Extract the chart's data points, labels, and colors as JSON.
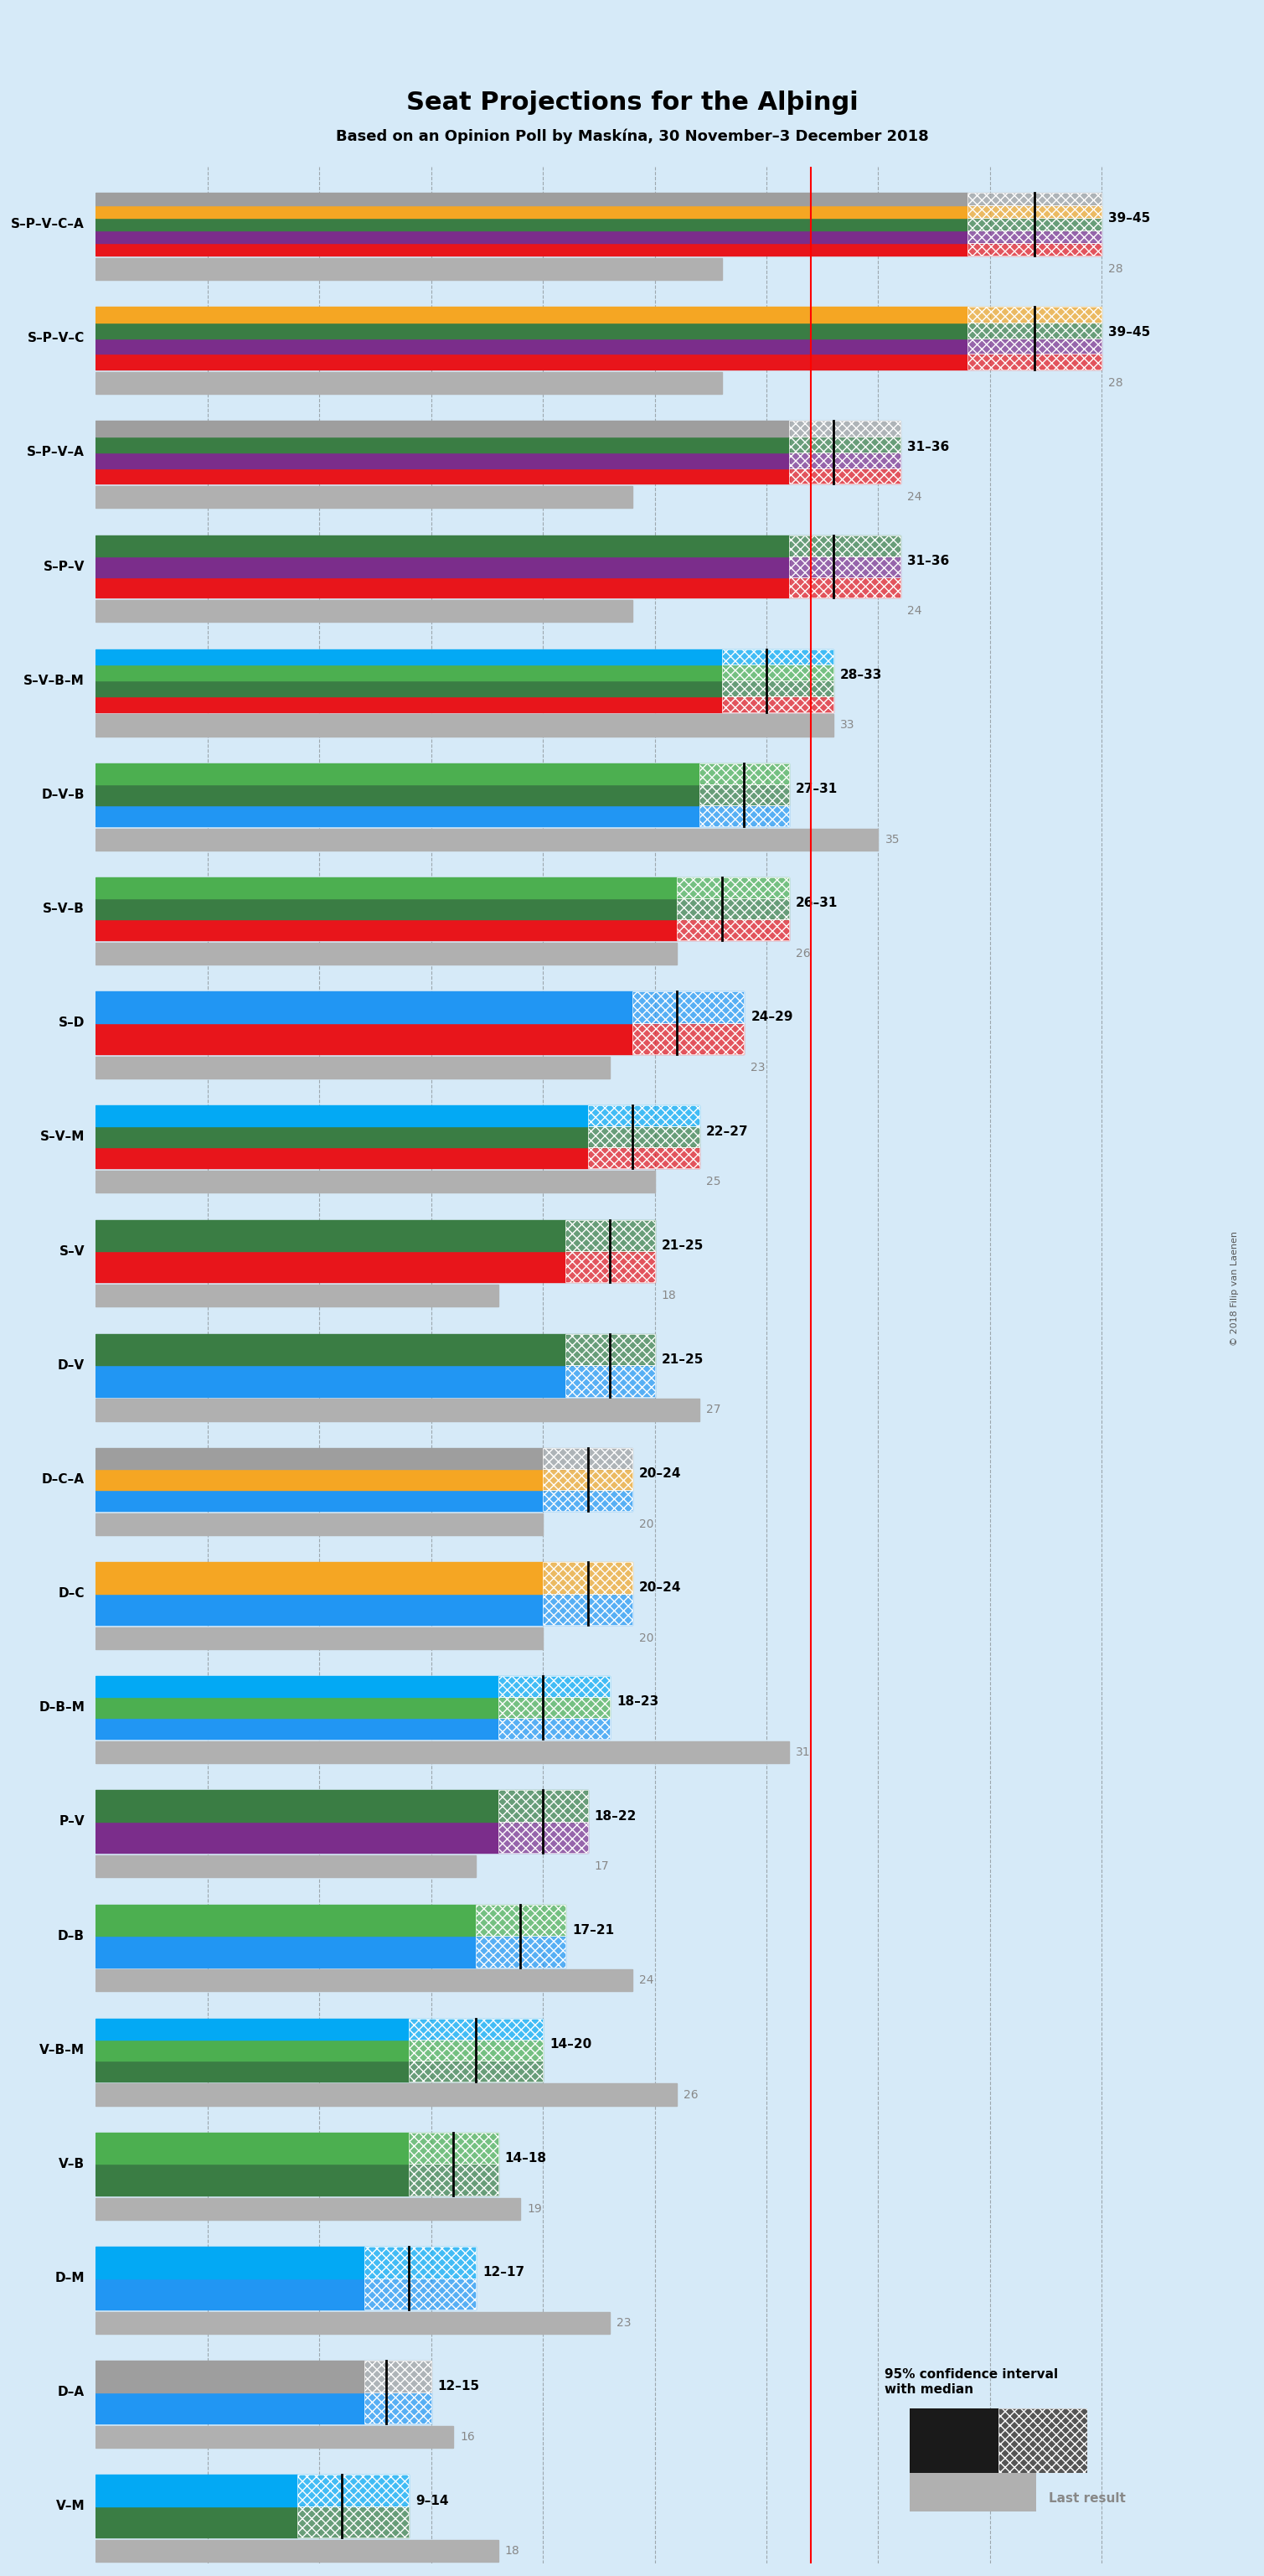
{
  "title": "Seat Projections for the Alþingi",
  "subtitle": "Based on an Opinion Poll by Maskína, 30 November–3 December 2018",
  "background_color": "#d6eaf8",
  "majority_line": 32,
  "xlim": [
    0,
    50
  ],
  "coalitions": [
    {
      "label": "S–P–V–C–A",
      "ci_low": 39,
      "ci_high": 45,
      "median": 42,
      "last": 28,
      "colors": [
        "#ff0000",
        "#6a0dad",
        "#4a7c59",
        "#ff8c00",
        "#c0c0c0"
      ]
    },
    {
      "label": "S–P–V–C",
      "ci_low": 39,
      "ci_high": 45,
      "median": 42,
      "last": 28,
      "colors": [
        "#ff0000",
        "#6a0dad",
        "#4a7c59",
        "#ff8c00"
      ]
    },
    {
      "label": "S–P–V–A",
      "ci_low": 31,
      "ci_high": 36,
      "median": 33,
      "last": 24,
      "colors": [
        "#ff0000",
        "#6a0dad",
        "#4a7c59",
        "#c0c0c0"
      ]
    },
    {
      "label": "S–P–V",
      "ci_low": 31,
      "ci_high": 36,
      "median": 33,
      "last": 24,
      "colors": [
        "#ff0000",
        "#6a0dad",
        "#4a7c59"
      ]
    },
    {
      "label": "S–V–B–M",
      "ci_low": 28,
      "ci_high": 33,
      "median": 30,
      "last": 33,
      "colors": [
        "#ff0000",
        "#4a7c59",
        "#00b050",
        "#2196F3"
      ]
    },
    {
      "label": "D–V–B",
      "ci_low": 27,
      "ci_high": 31,
      "median": 29,
      "last": 35,
      "colors": [
        "#1e90ff",
        "#4a7c59",
        "#00b050"
      ]
    },
    {
      "label": "S–V–B",
      "ci_low": 26,
      "ci_high": 31,
      "median": 28,
      "last": 26,
      "colors": [
        "#ff0000",
        "#4a7c59",
        "#00b050"
      ]
    },
    {
      "label": "S–D",
      "ci_low": 24,
      "ci_high": 29,
      "median": 26,
      "last": 23,
      "colors": [
        "#ff0000",
        "#1e90ff"
      ]
    },
    {
      "label": "S–V–M",
      "ci_low": 22,
      "ci_high": 27,
      "median": 24,
      "last": 25,
      "colors": [
        "#ff0000",
        "#4a7c59",
        "#2196F3"
      ]
    },
    {
      "label": "S–V",
      "ci_low": 21,
      "ci_high": 25,
      "median": 23,
      "last": 18,
      "colors": [
        "#ff0000",
        "#4a7c59"
      ]
    },
    {
      "label": "D–V",
      "ci_low": 21,
      "ci_high": 25,
      "median": 23,
      "last": 27,
      "colors": [
        "#1e90ff",
        "#4a7c59"
      ]
    },
    {
      "label": "D–C–A",
      "ci_low": 20,
      "ci_high": 24,
      "median": 22,
      "last": 20,
      "colors": [
        "#1e90ff",
        "#ff8c00",
        "#c0c0c0"
      ]
    },
    {
      "label": "D–C",
      "ci_low": 20,
      "ci_high": 24,
      "median": 22,
      "last": 20,
      "colors": [
        "#1e90ff",
        "#ff8c00"
      ]
    },
    {
      "label": "D–B–M",
      "ci_low": 18,
      "ci_high": 23,
      "median": 20,
      "last": 31,
      "colors": [
        "#1e90ff",
        "#00b050",
        "#2196F3"
      ]
    },
    {
      "label": "P–V",
      "ci_low": 18,
      "ci_high": 22,
      "median": 20,
      "last": 17,
      "colors": [
        "#6a0dad",
        "#4a7c59"
      ]
    },
    {
      "label": "D–B",
      "ci_low": 17,
      "ci_high": 21,
      "median": 19,
      "last": 24,
      "colors": [
        "#1e90ff",
        "#00b050"
      ]
    },
    {
      "label": "V–B–M",
      "ci_low": 14,
      "ci_high": 20,
      "median": 17,
      "last": 26,
      "colors": [
        "#4a7c59",
        "#00b050",
        "#2196F3"
      ]
    },
    {
      "label": "V–B",
      "ci_low": 14,
      "ci_high": 18,
      "median": 16,
      "last": 19,
      "colors": [
        "#4a7c59",
        "#00b050"
      ]
    },
    {
      "label": "D–M",
      "ci_low": 12,
      "ci_high": 17,
      "median": 14,
      "last": 23,
      "colors": [
        "#1e90ff",
        "#2196F3"
      ]
    },
    {
      "label": "D–A",
      "ci_low": 12,
      "ci_high": 15,
      "median": 13,
      "last": 16,
      "colors": [
        "#1e90ff",
        "#c0c0c0"
      ]
    },
    {
      "label": "V–M",
      "ci_low": 9,
      "ci_high": 14,
      "median": 11,
      "last": 18,
      "colors": [
        "#4a7c59",
        "#2196F3"
      ]
    }
  ],
  "party_colors": {
    "S": "#ff0000",
    "P": "#6a0dad",
    "V": "#3d7a3d",
    "C": "#ff8c00",
    "A": "#808080",
    "D": "#1e90ff",
    "B": "#32cd32",
    "M": "#00bfff"
  }
}
